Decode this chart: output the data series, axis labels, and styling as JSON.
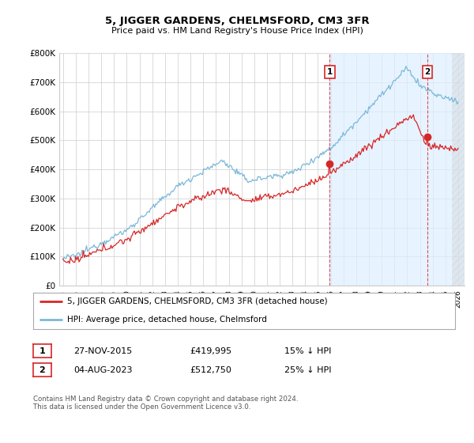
{
  "title": "5, JIGGER GARDENS, CHELMSFORD, CM3 3FR",
  "subtitle": "Price paid vs. HM Land Registry's House Price Index (HPI)",
  "ylabel_ticks": [
    "£0",
    "£100K",
    "£200K",
    "£300K",
    "£400K",
    "£500K",
    "£600K",
    "£700K",
    "£800K"
  ],
  "ytick_vals": [
    0,
    100000,
    200000,
    300000,
    400000,
    500000,
    600000,
    700000,
    800000
  ],
  "ylim": [
    0,
    800000
  ],
  "xlim_start": 1994.7,
  "xlim_end": 2026.5,
  "hpi_color": "#7ab8d9",
  "price_color": "#d62728",
  "marker1_x": 2015.92,
  "marker1_y": 419995,
  "marker2_x": 2023.58,
  "marker2_y": 512750,
  "marker1_label": "27-NOV-2015",
  "marker1_price": "£419,995",
  "marker1_hpi": "15% ↓ HPI",
  "marker2_label": "04-AUG-2023",
  "marker2_price": "£512,750",
  "marker2_hpi": "25% ↓ HPI",
  "legend_line1": "5, JIGGER GARDENS, CHELMSFORD, CM3 3FR (detached house)",
  "legend_line2": "HPI: Average price, detached house, Chelmsford",
  "footnote": "Contains HM Land Registry data © Crown copyright and database right 2024.\nThis data is licensed under the Open Government Licence v3.0.",
  "bg_color": "#ffffff",
  "grid_color": "#cccccc",
  "shade_color": "#ddeeff"
}
